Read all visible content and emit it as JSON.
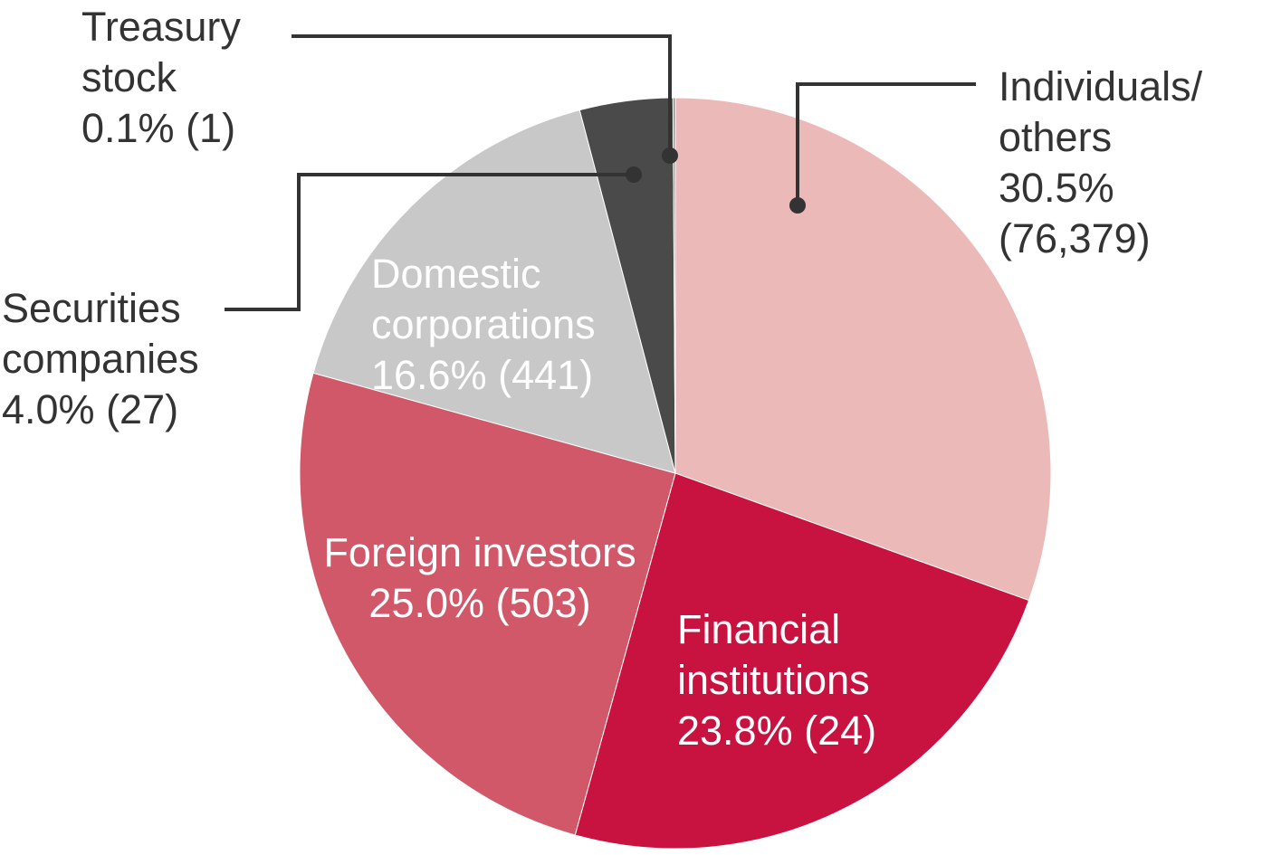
{
  "chart_data": {
    "type": "pie",
    "categories": [
      "Individuals/ others",
      "Financial institutions",
      "Foreign investors",
      "Domestic corporations",
      "Securities companies",
      "Treasury stock"
    ],
    "values": [
      30.5,
      23.8,
      25.0,
      16.6,
      4.0,
      0.1
    ],
    "value_labels": [
      "30.5% (76,379)",
      "23.8% (24)",
      "25.0% (503)",
      "16.6% (441)",
      "4.0% (27)",
      "0.1% (1)"
    ],
    "colors": [
      "#ebb9b7",
      "#c8123f",
      "#d05868",
      "#c8c8c8",
      "#4a4a4b",
      "#8a8a8a"
    ]
  }
}
